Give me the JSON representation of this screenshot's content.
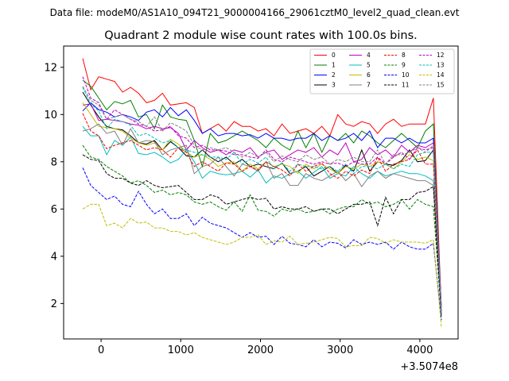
{
  "suptitle": "Data file: modeM0/AS1A10_094T21_9000004166_29061cztM0_level2_quad_clean.evt",
  "chart_data": {
    "type": "line",
    "title": "Quadrant 2 module wise count rates with 100.0s bins.",
    "xlabel": "",
    "ylabel": "",
    "x_offset_label": "+3.5074e8",
    "xlim": [
      -470,
      4480
    ],
    "ylim": [
      0.5,
      12.9
    ],
    "xticks": [
      0,
      1000,
      2000,
      3000,
      4000
    ],
    "yticks": [
      2,
      4,
      6,
      8,
      10,
      12
    ],
    "grid": false,
    "legend": {
      "placement": "top-right",
      "columns": 4
    },
    "x": [
      -230,
      -130,
      -30,
      70,
      170,
      270,
      370,
      470,
      570,
      670,
      770,
      870,
      970,
      1070,
      1170,
      1270,
      1370,
      1470,
      1570,
      1670,
      1770,
      1870,
      1970,
      2070,
      2170,
      2270,
      2370,
      2470,
      2570,
      2670,
      2770,
      2870,
      2970,
      3070,
      3170,
      3270,
      3370,
      3470,
      3570,
      3670,
      3770,
      3870,
      3970,
      4070,
      4170,
      4270
    ],
    "series": [
      {
        "name": "0",
        "color": "#ff0000",
        "dash": "solid",
        "values": [
          12.38,
          11.05,
          11.6,
          11.5,
          11.4,
          10.95,
          11.15,
          10.9,
          10.5,
          10.6,
          10.9,
          10.4,
          10.45,
          10.5,
          10.3,
          9.2,
          9.4,
          9.6,
          9.3,
          9.7,
          9.5,
          9.5,
          9.3,
          9.4,
          9.1,
          9.6,
          9.2,
          9.3,
          9.4,
          9.2,
          9.5,
          9.1,
          10.0,
          9.6,
          9.5,
          9.7,
          9.6,
          9.2,
          9.6,
          9.8,
          9.5,
          9.6,
          9.6,
          9.6,
          10.7,
          1.6
        ]
      },
      {
        "name": "1",
        "color": "#008000",
        "dash": "solid",
        "values": [
          11.45,
          11.2,
          10.7,
          10.2,
          10.55,
          10.45,
          10.6,
          9.9,
          10.0,
          9.4,
          10.4,
          9.9,
          9.8,
          9.75,
          8.9,
          7.8,
          9.2,
          8.8,
          8.9,
          9.1,
          9.3,
          9.1,
          8.9,
          8.6,
          9.0,
          8.7,
          8.5,
          9.3,
          8.6,
          9.2,
          8.4,
          9.1,
          8.9,
          9.2,
          8.8,
          9.3,
          9.1,
          8.8,
          8.6,
          8.9,
          9.2,
          8.9,
          8.6,
          9.3,
          9.6,
          1.7
        ]
      },
      {
        "name": "2",
        "color": "#0000ff",
        "dash": "solid",
        "values": [
          10.15,
          10.5,
          10.2,
          10.1,
          9.9,
          10.0,
          9.9,
          9.75,
          10.1,
          10.2,
          9.9,
          10.3,
          9.95,
          10.2,
          9.75,
          9.2,
          9.4,
          9.1,
          9.2,
          9.2,
          9.1,
          9.15,
          9.0,
          9.2,
          9.0,
          9.0,
          8.9,
          9.0,
          9.0,
          9.2,
          8.9,
          9.1,
          8.9,
          9.0,
          9.2,
          8.9,
          9.3,
          8.6,
          9.0,
          9.0,
          8.8,
          9.0,
          8.8,
          8.8,
          9.0,
          1.8
        ]
      },
      {
        "name": "3",
        "color": "#000000",
        "dash": "solid",
        "values": [
          10.95,
          10.4,
          9.9,
          9.5,
          9.4,
          9.35,
          9.1,
          8.8,
          8.75,
          8.9,
          8.5,
          8.85,
          8.6,
          8.25,
          8.2,
          8.5,
          8.2,
          8.0,
          8.2,
          7.9,
          8.1,
          7.8,
          7.9,
          7.8,
          7.7,
          7.95,
          7.5,
          7.6,
          7.8,
          7.4,
          7.6,
          7.8,
          7.5,
          7.85,
          7.6,
          8.5,
          7.6,
          8.0,
          7.9,
          7.85,
          8.05,
          8.5,
          8.0,
          8.05,
          8.5,
          1.7
        ]
      },
      {
        "name": "4",
        "color": "#bf00bf",
        "dash": "solid",
        "values": [
          10.4,
          10.45,
          9.75,
          9.8,
          9.75,
          9.7,
          9.6,
          9.55,
          9.4,
          9.5,
          9.4,
          9.45,
          9.2,
          8.5,
          8.9,
          8.6,
          8.4,
          8.5,
          8.3,
          8.5,
          8.4,
          8.6,
          8.2,
          8.4,
          8.5,
          8.1,
          8.3,
          8.5,
          8.4,
          8.6,
          8.2,
          8.5,
          8.3,
          8.8,
          8.0,
          8.1,
          8.6,
          8.3,
          8.5,
          8.2,
          8.7,
          8.4,
          8.7,
          8.6,
          8.8,
          1.8
        ]
      },
      {
        "name": "5",
        "color": "#00bfbf",
        "dash": "solid",
        "values": [
          9.5,
          9.1,
          9.1,
          8.3,
          8.9,
          8.7,
          9.05,
          8.35,
          8.3,
          8.4,
          8.2,
          7.95,
          8.1,
          8.5,
          8.0,
          7.3,
          7.6,
          7.5,
          7.45,
          7.5,
          7.6,
          7.35,
          7.65,
          7.1,
          7.4,
          7.3,
          7.5,
          7.6,
          7.3,
          7.55,
          7.8,
          7.3,
          7.5,
          7.4,
          7.8,
          7.5,
          7.3,
          7.6,
          7.4,
          7.5,
          7.6,
          7.5,
          7.5,
          7.4,
          7.2,
          1.7
        ]
      },
      {
        "name": "6",
        "color": "#bfbf00",
        "dash": "solid",
        "values": [
          10.5,
          10.0,
          9.5,
          9.45,
          9.4,
          9.3,
          9.0,
          8.8,
          8.7,
          8.8,
          8.5,
          8.95,
          8.75,
          8.4,
          8.2,
          8.3,
          8.1,
          7.8,
          7.95,
          8.0,
          7.6,
          7.9,
          7.7,
          8.0,
          7.8,
          7.9,
          7.8,
          7.5,
          7.9,
          7.7,
          7.9,
          7.7,
          7.5,
          7.8,
          7.7,
          7.9,
          7.8,
          8.0,
          7.9,
          7.7,
          8.0,
          8.3,
          8.1,
          8.2,
          8.05,
          1.7
        ]
      },
      {
        "name": "7",
        "color": "#808080",
        "dash": "solid",
        "values": [
          9.3,
          9.4,
          9.6,
          9.2,
          9.3,
          8.7,
          9.4,
          8.8,
          8.9,
          8.85,
          8.3,
          8.5,
          8.6,
          8.7,
          7.5,
          7.8,
          7.9,
          8.2,
          7.8,
          7.4,
          7.9,
          7.8,
          7.6,
          8.0,
          7.3,
          7.5,
          7.0,
          7.0,
          7.5,
          7.3,
          7.2,
          7.4,
          7.6,
          7.2,
          7.5,
          6.95,
          7.4,
          7.6,
          7.3,
          7.5,
          7.4,
          7.3,
          7.2,
          7.2,
          7.0,
          1.6
        ]
      },
      {
        "name": "8",
        "color": "#ff0000",
        "dash": "dashed",
        "values": [
          10.05,
          9.3,
          9.1,
          8.55,
          8.7,
          8.8,
          8.9,
          8.7,
          8.5,
          8.6,
          8.5,
          8.2,
          8.6,
          8.4,
          7.8,
          8.0,
          7.8,
          7.6,
          7.95,
          7.9,
          7.6,
          7.8,
          7.65,
          8.0,
          7.8,
          7.65,
          7.4,
          7.9,
          7.6,
          7.8,
          7.95,
          7.5,
          7.3,
          7.6,
          7.4,
          7.65,
          7.5,
          8.2,
          7.6,
          7.9,
          8.0,
          8.1,
          8.5,
          7.9,
          7.9,
          1.5
        ]
      },
      {
        "name": "9",
        "color": "#008000",
        "dash": "dashed",
        "values": [
          8.7,
          8.2,
          8.1,
          7.8,
          7.6,
          7.4,
          7.1,
          7.2,
          7.0,
          6.7,
          6.8,
          6.6,
          6.7,
          6.6,
          6.3,
          6.2,
          6.3,
          6.1,
          5.95,
          6.3,
          5.9,
          6.6,
          5.95,
          5.9,
          5.7,
          6.0,
          5.9,
          6.0,
          5.85,
          5.9,
          6.0,
          5.8,
          6.0,
          6.1,
          6.1,
          6.4,
          6.2,
          6.3,
          6.1,
          6.2,
          6.4,
          6.0,
          6.4,
          6.2,
          6.1,
          1.5
        ]
      },
      {
        "name": "10",
        "color": "#0000ff",
        "dash": "dashed",
        "values": [
          7.75,
          7.0,
          6.7,
          6.4,
          6.55,
          6.2,
          6.1,
          6.75,
          6.2,
          5.8,
          6.0,
          5.6,
          5.6,
          5.8,
          5.3,
          5.65,
          5.4,
          5.3,
          5.2,
          5.0,
          4.8,
          5.0,
          4.8,
          4.85,
          4.5,
          4.85,
          4.55,
          4.5,
          4.4,
          4.7,
          4.4,
          4.6,
          4.55,
          4.35,
          4.7,
          4.5,
          4.6,
          4.5,
          4.6,
          4.3,
          4.6,
          4.4,
          4.3,
          4.3,
          4.55,
          1.3
        ]
      },
      {
        "name": "11",
        "color": "#000000",
        "dash": "dashed",
        "values": [
          8.3,
          8.1,
          8.05,
          7.5,
          7.3,
          7.3,
          7.1,
          7.0,
          7.2,
          7.0,
          6.9,
          6.95,
          7.0,
          6.7,
          6.4,
          6.4,
          6.6,
          6.5,
          6.2,
          6.3,
          6.4,
          6.5,
          6.4,
          6.45,
          6.0,
          6.1,
          6.0,
          6.0,
          6.1,
          5.9,
          6.0,
          6.0,
          5.8,
          6.0,
          6.2,
          6.2,
          6.3,
          5.3,
          6.5,
          5.8,
          6.4,
          6.4,
          6.7,
          6.75,
          6.95,
          1.4
        ]
      },
      {
        "name": "12",
        "color": "#bf00bf",
        "dash": "dashed",
        "values": [
          11.6,
          10.7,
          10.5,
          9.8,
          10.2,
          10.0,
          9.8,
          9.6,
          9.5,
          9.3,
          9.35,
          9.5,
          9.1,
          9.0,
          8.6,
          8.7,
          8.5,
          8.5,
          8.45,
          8.3,
          8.3,
          8.2,
          8.15,
          8.5,
          8.1,
          8.0,
          8.2,
          8.1,
          8.0,
          7.9,
          8.0,
          7.9,
          7.95,
          7.8,
          8.0,
          7.9,
          7.9,
          8.2,
          7.9,
          8.2,
          8.4,
          8.1,
          8.6,
          8.5,
          8.6,
          1.6
        ]
      },
      {
        "name": "13",
        "color": "#00bfbf",
        "dash": "dashed",
        "values": [
          11.15,
          10.45,
          10.15,
          9.4,
          9.8,
          9.7,
          9.55,
          9.1,
          9.2,
          9.0,
          8.8,
          8.9,
          8.6,
          8.5,
          8.4,
          8.3,
          8.2,
          8.2,
          8.1,
          8.4,
          7.9,
          8.1,
          7.95,
          8.2,
          7.7,
          7.95,
          7.6,
          7.9,
          7.8,
          7.8,
          7.7,
          7.8,
          7.6,
          7.9,
          7.5,
          7.8,
          7.8,
          7.7,
          7.9,
          7.7,
          7.9,
          7.8,
          8.3,
          8.4,
          8.4,
          1.5
        ]
      },
      {
        "name": "14",
        "color": "#bfbf00",
        "dash": "dashed",
        "values": [
          6.0,
          6.2,
          6.2,
          5.3,
          5.4,
          5.2,
          5.6,
          5.4,
          5.45,
          5.2,
          5.2,
          5.05,
          5.05,
          4.9,
          5.0,
          4.8,
          4.7,
          4.6,
          4.5,
          4.6,
          4.8,
          4.8,
          4.9,
          4.5,
          4.65,
          4.6,
          4.85,
          4.5,
          4.55,
          4.6,
          4.7,
          4.8,
          4.75,
          4.4,
          4.45,
          4.45,
          4.8,
          4.75,
          4.55,
          4.7,
          4.6,
          4.6,
          4.6,
          4.55,
          4.7,
          1.0
        ]
      },
      {
        "name": "15",
        "color": "#808080",
        "dash": "dashed",
        "values": [
          11.2,
          10.6,
          10.4,
          9.8,
          9.9,
          10.0,
          9.8,
          9.7,
          9.5,
          9.9,
          9.3,
          9.65,
          9.5,
          9.3,
          8.7,
          8.5,
          8.6,
          8.5,
          8.6,
          8.4,
          8.2,
          8.4,
          8.2,
          8.4,
          8.0,
          8.25,
          8.1,
          8.0,
          8.3,
          8.1,
          8.2,
          7.9,
          8.1,
          8.0,
          8.2,
          8.0,
          8.0,
          8.5,
          7.9,
          8.3,
          8.3,
          8.4,
          8.6,
          8.4,
          8.7,
          1.6
        ]
      }
    ]
  }
}
